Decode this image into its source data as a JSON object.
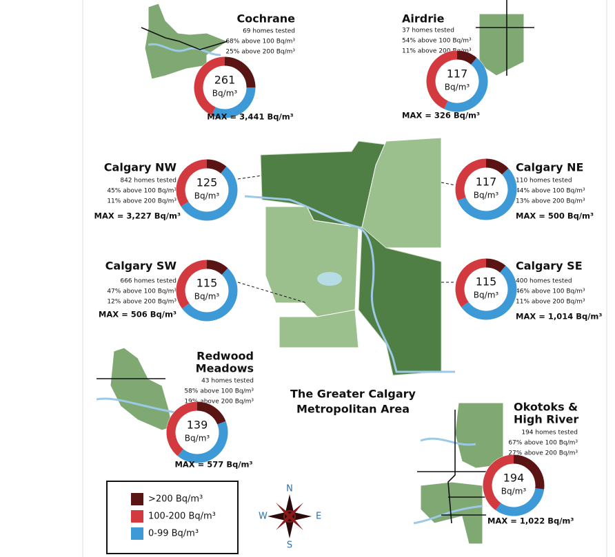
{
  "map_title": [
    "The Greater Calgary",
    "Metropolitan Area"
  ],
  "legend": [
    {
      "label": ">200 Bq/m³",
      "color": "#5a1414"
    },
    {
      "label": "100-200 Bq/m³",
      "color": "#d23a3f"
    },
    {
      "label": "0-99 Bq/m³",
      "color": "#3e9ad6"
    }
  ],
  "compass": {
    "n": "N",
    "s": "S",
    "e": "E",
    "w": "W"
  },
  "regions": [
    {
      "name": [
        "Cochrane"
      ],
      "tested": "69 homes tested",
      "stats": [
        {
          "value": 68,
          "label": "68% above 100 Bq/m³"
        },
        {
          "value": 25,
          "label": "25% above 200 Bq/m³"
        }
      ],
      "median": "261",
      "unit": "Bq/m³",
      "max": "MAX = 3,441 Bq/m³"
    },
    {
      "name": [
        "Airdrie"
      ],
      "tested": "37 homes tested",
      "stats": [
        {
          "value": 54,
          "label": "54% above 100 Bq/m³"
        },
        {
          "value": 11,
          "label": "11% above 200 Bq/m³"
        }
      ],
      "median": "117",
      "unit": "Bq/m³",
      "max": "MAX = 326 Bq/m³"
    },
    {
      "name": [
        "Calgary NW"
      ],
      "tested": "842 homes tested",
      "stats": [
        {
          "value": 45,
          "label": "45% above 100 Bq/m³"
        },
        {
          "value": 11,
          "label": "11% above 200 Bq/m³"
        }
      ],
      "median": "125",
      "unit": "Bq/m³",
      "max": "MAX = 3,227 Bq/m³"
    },
    {
      "name": [
        "Calgary NE"
      ],
      "tested": "110 homes tested",
      "stats": [
        {
          "value": 44,
          "label": "44% above 100 Bq/m³"
        },
        {
          "value": 13,
          "label": "13% above 200 Bq/m³"
        }
      ],
      "median": "117",
      "unit": "Bq/m³",
      "max": "MAX = 500 Bq/m³"
    },
    {
      "name": [
        "Calgary SW"
      ],
      "tested": "666 homes tested",
      "stats": [
        {
          "value": 47,
          "label": "47% above 100 Bq/m³"
        },
        {
          "value": 12,
          "label": "12% above 200 Bq/m³"
        }
      ],
      "median": "115",
      "unit": "Bq/m³",
      "max": "MAX = 506 Bq/m³"
    },
    {
      "name": [
        "Calgary SE"
      ],
      "tested": "400 homes tested",
      "stats": [
        {
          "value": 46,
          "label": "46% above 100 Bq/m³"
        },
        {
          "value": 11,
          "label": "11% above 200 Bq/m³"
        }
      ],
      "median": "115",
      "unit": "Bq/m³",
      "max": "MAX = 1,014 Bq/m³"
    },
    {
      "name": [
        "Redwood",
        "Meadows"
      ],
      "tested": "43 homes tested",
      "stats": [
        {
          "value": 58,
          "label": "58% above 100 Bq/m³"
        },
        {
          "value": 19,
          "label": "19% above 200 Bq/m³"
        }
      ],
      "median": "139",
      "unit": "Bq/m³",
      "max": "MAX = 577 Bq/m³"
    },
    {
      "name": [
        "Okotoks &",
        "High River"
      ],
      "tested": "194 homes tested",
      "stats": [
        {
          "value": 67,
          "label": "67% above 100 Bq/m³"
        },
        {
          "value": 27,
          "label": "27% above 200 Bq/m³"
        }
      ],
      "median": "194",
      "unit": "Bq/m³",
      "max": "MAX = 1,022 Bq/m³"
    }
  ]
}
